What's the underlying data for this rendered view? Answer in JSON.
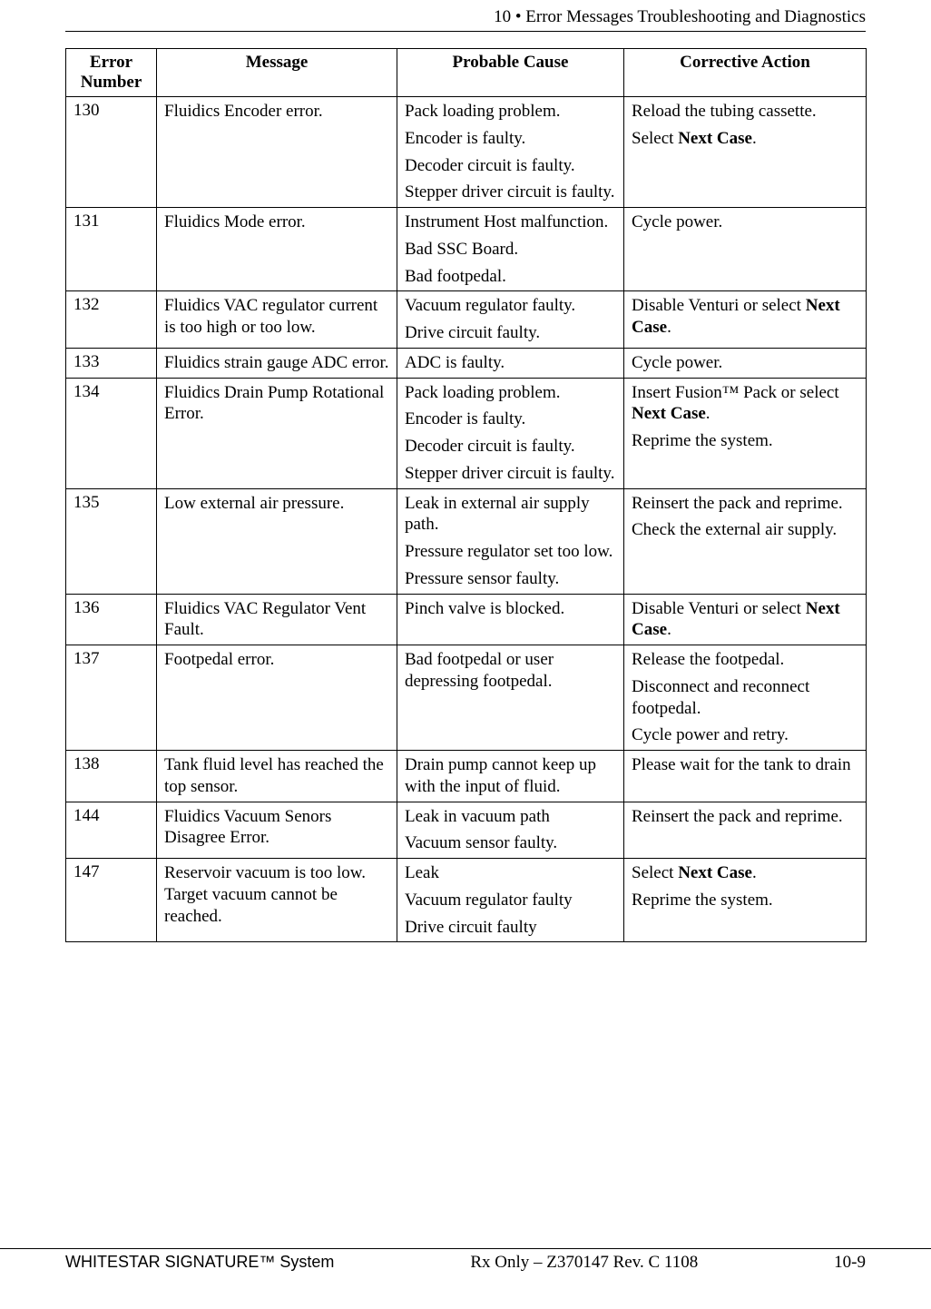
{
  "header": {
    "chapter_number": "10",
    "separator": " • ",
    "chapter_title": "Error Messages Troubleshooting and Diagnostics"
  },
  "table": {
    "headers": {
      "col0": "Error Number",
      "col1": "Message",
      "col2": "Probable Cause",
      "col3": "Corrective Action"
    },
    "rows": [
      {
        "num": "130",
        "msg": [
          "Fluidics Encoder error."
        ],
        "cause": [
          "Pack loading problem.",
          "Encoder is faulty.",
          "Decoder circuit is faulty.",
          "Stepper driver circuit is faulty."
        ],
        "action": [
          {
            "parts": [
              {
                "t": "Reload the tubing cassette."
              }
            ]
          },
          {
            "parts": [
              {
                "t": "Select "
              },
              {
                "t": "Next Case",
                "bold": true
              },
              {
                "t": "."
              }
            ]
          }
        ]
      },
      {
        "num": "131",
        "msg": [
          "Fluidics Mode error."
        ],
        "cause": [
          "Instrument Host malfunction.",
          "Bad SSC Board.",
          "Bad footpedal."
        ],
        "action": [
          {
            "parts": [
              {
                "t": "Cycle power."
              }
            ]
          }
        ]
      },
      {
        "num": "132",
        "msg": [
          "Fluidics VAC regulator current is too high or too low."
        ],
        "cause": [
          "Vacuum regulator faulty.",
          "Drive circuit faulty."
        ],
        "action": [
          {
            "parts": [
              {
                "t": "Disable Venturi or select "
              },
              {
                "t": "Next Case",
                "bold": true
              },
              {
                "t": "."
              }
            ]
          }
        ]
      },
      {
        "num": "133",
        "msg": [
          "Fluidics strain gauge ADC error."
        ],
        "cause": [
          "ADC is faulty."
        ],
        "action": [
          {
            "parts": [
              {
                "t": "Cycle power."
              }
            ]
          }
        ]
      },
      {
        "num": "134",
        "msg": [
          "Fluidics Drain Pump Rotational Error."
        ],
        "cause": [
          "Pack loading problem.",
          "Encoder is faulty.",
          "Decoder circuit is faulty.",
          "Stepper driver circuit is faulty."
        ],
        "action": [
          {
            "parts": [
              {
                "t": "Insert Fusion™ Pack or select "
              },
              {
                "t": "Next Case",
                "bold": true
              },
              {
                "t": "."
              }
            ]
          },
          {
            "parts": [
              {
                "t": "Reprime the system."
              }
            ]
          }
        ]
      },
      {
        "num": "135",
        "msg": [
          "Low external air pressure."
        ],
        "cause": [
          "Leak in external air supply path.",
          "Pressure regulator set too low.",
          "Pressure sensor faulty."
        ],
        "action": [
          {
            "parts": [
              {
                "t": "Reinsert the pack and reprime."
              }
            ]
          },
          {
            "parts": [
              {
                "t": "Check the external air supply."
              }
            ]
          }
        ]
      },
      {
        "num": "136",
        "msg": [
          "Fluidics VAC Regulator Vent Fault."
        ],
        "cause": [
          "Pinch valve is blocked."
        ],
        "action": [
          {
            "parts": [
              {
                "t": "Disable Venturi or select "
              },
              {
                "t": "Next Case",
                "bold": true
              },
              {
                "t": "."
              }
            ]
          }
        ]
      },
      {
        "num": "137",
        "msg": [
          "Footpedal error."
        ],
        "cause": [
          "Bad footpedal or user depressing footpedal."
        ],
        "action": [
          {
            "parts": [
              {
                "t": "Release the footpedal."
              }
            ]
          },
          {
            "parts": [
              {
                "t": "Disconnect and reconnect footpedal."
              }
            ]
          },
          {
            "parts": [
              {
                "t": "Cycle power and retry."
              }
            ]
          }
        ]
      },
      {
        "num": "138",
        "msg": [
          "Tank fluid level has reached the top sensor."
        ],
        "cause": [
          "Drain pump cannot keep up with the input of fluid."
        ],
        "action": [
          {
            "parts": [
              {
                "t": "Please wait for the tank to drain"
              }
            ]
          }
        ]
      },
      {
        "num": "144",
        "msg": [
          "Fluidics Vacuum Senors Disagree Error."
        ],
        "cause": [
          "Leak in vacuum path",
          "Vacuum sensor faulty."
        ],
        "action": [
          {
            "parts": [
              {
                "t": "Reinsert the pack and reprime."
              }
            ]
          }
        ]
      },
      {
        "num": "147",
        "msg": [
          "Reservoir vacuum is too low. Target vacuum cannot be reached."
        ],
        "cause": [
          "Leak",
          "Vacuum regulator faulty",
          "Drive circuit faulty"
        ],
        "action": [
          {
            "parts": [
              {
                "t": "Select "
              },
              {
                "t": "Next Case",
                "bold": true
              },
              {
                "t": "."
              }
            ]
          },
          {
            "parts": [
              {
                "t": "Reprime the system."
              }
            ]
          }
        ]
      }
    ]
  },
  "footer": {
    "left": "WHITESTAR SIGNATURE™ System",
    "center": "Rx Only – Z370147 Rev. C 1108",
    "right": "10-9"
  }
}
